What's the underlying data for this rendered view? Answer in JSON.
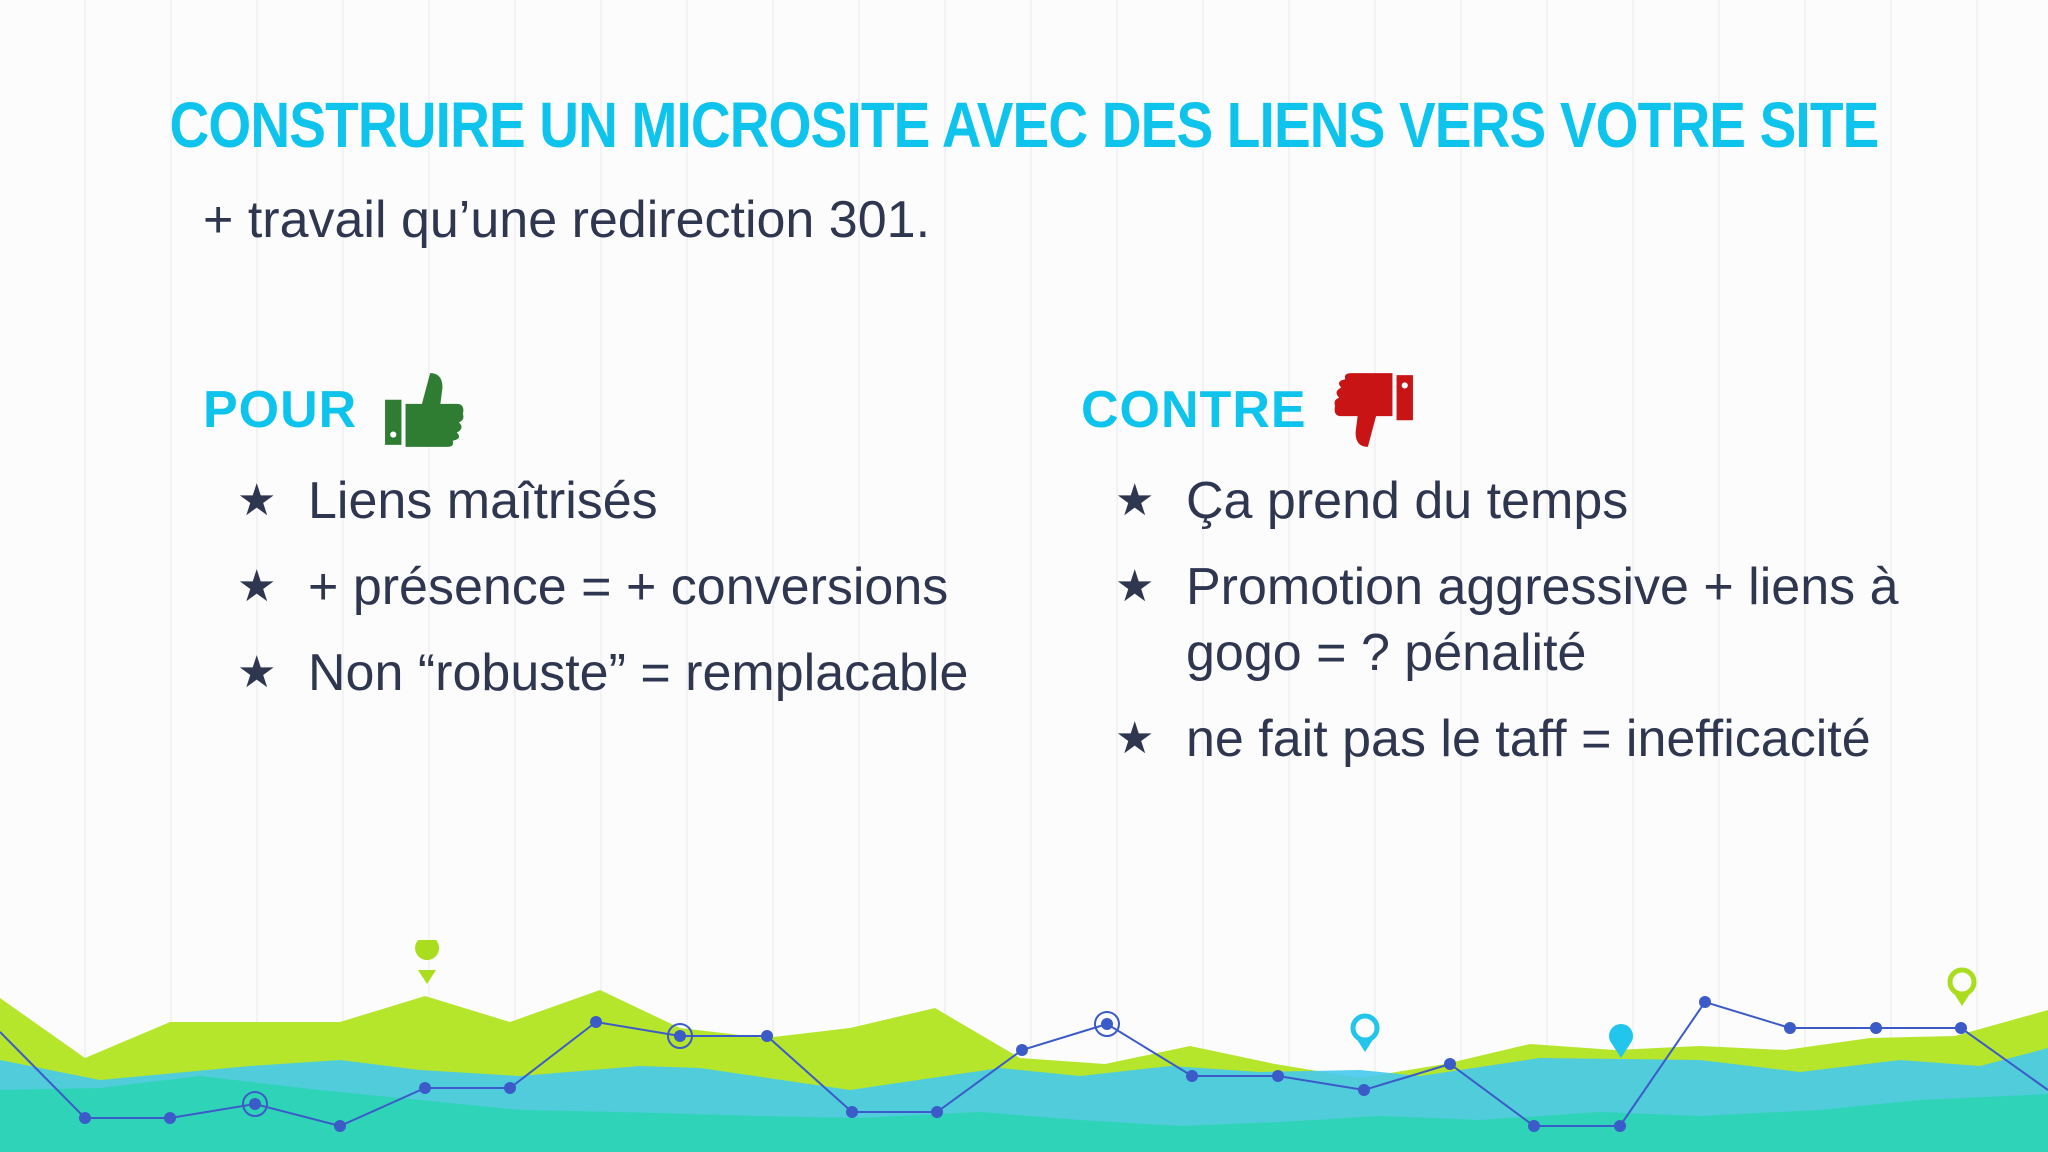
{
  "slide": {
    "title": "CONSTRUIRE UN MICROSITE AVEC DES LIENS VERS VOTRE SITE",
    "subtitle": "+ travail qu’une redirection 301."
  },
  "pour": {
    "label": "POUR",
    "icon": "thumbs-up-icon",
    "icon_color": "#2e7d32",
    "items": [
      "Liens maîtrisés",
      "+ présence = + conversions",
      "Non “robuste” = remplacable"
    ]
  },
  "contre": {
    "label": "CONTRE",
    "icon": "thumbs-down-icon",
    "icon_color": "#c81414",
    "items": [
      "Ça prend du temps",
      "Promotion aggressive + liens à gogo = ? pénalité",
      "ne fait pas le taff = inefficacité"
    ]
  },
  "colors": {
    "accent": "#0fc4ec",
    "text": "#2f3650",
    "green": "#b6e62c",
    "teal": "#2fd4b8",
    "line": "#3b5bc8"
  }
}
